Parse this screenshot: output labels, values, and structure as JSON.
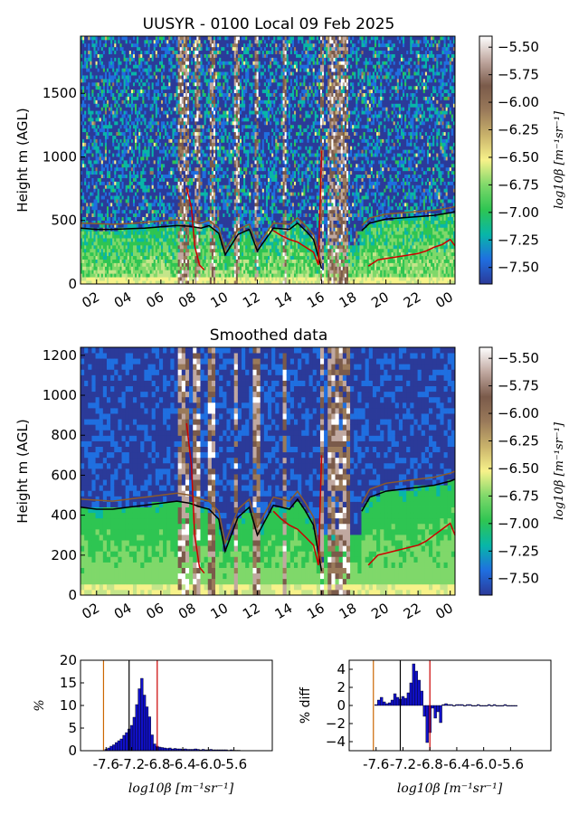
{
  "chart_data": [
    {
      "type": "heatmap",
      "title": "UUSYR - 0100 Local 09 Feb 2025",
      "ylabel": "Height m (AGL)",
      "x_ticks": [
        "02",
        "04",
        "06",
        "08",
        "10",
        "12",
        "14",
        "16",
        "18",
        "20",
        "22",
        "00"
      ],
      "x_range_hours": [
        1,
        24.3
      ],
      "y_ticks": [
        0,
        500,
        1000,
        1500
      ],
      "ylim": [
        0,
        1950
      ],
      "colorbar": {
        "label": "log10β [m⁻¹sr⁻¹]",
        "ticks": [
          "-5.50",
          "-5.75",
          "-6.00",
          "-6.25",
          "-6.50",
          "-6.75",
          "-7.00",
          "-7.25",
          "-7.50"
        ],
        "range": [
          -7.65,
          -5.4
        ]
      },
      "lines": [
        {
          "color": "#000000",
          "x": [
            1.0,
            2.0,
            3.0,
            4.0,
            5.0,
            6.0,
            7.0,
            7.8,
            8.5,
            9.0,
            9.6,
            10.0,
            10.8,
            11.5,
            12.0,
            13.0,
            14.0,
            14.5,
            15.0,
            15.5,
            16.0
          ],
          "y": [
            440,
            430,
            430,
            435,
            440,
            450,
            460,
            455,
            440,
            460,
            400,
            230,
            390,
            430,
            260,
            440,
            430,
            480,
            420,
            350,
            120
          ]
        },
        {
          "color": "#8b5a2b",
          "x": [
            1.0,
            2.0,
            3.0,
            4.0,
            5.0,
            6.0,
            7.0,
            7.8,
            8.5,
            9.0,
            9.6,
            10.0,
            10.8,
            11.5,
            12.0,
            13.0,
            14.0,
            14.5,
            15.0,
            15.5,
            16.0
          ],
          "y": [
            480,
            475,
            470,
            475,
            485,
            495,
            505,
            495,
            480,
            500,
            440,
            270,
            430,
            470,
            300,
            480,
            470,
            520,
            460,
            390,
            160
          ]
        },
        {
          "color": "#cc0000",
          "x": [
            7.6,
            7.9,
            8.1,
            8.4,
            8.7
          ],
          "y": [
            760,
            600,
            300,
            150,
            110
          ]
        },
        {
          "color": "#cc0000",
          "x": [
            13.0,
            13.5,
            14.0,
            14.5,
            15.0,
            15.5,
            15.8,
            16.0
          ],
          "y": [
            420,
            380,
            350,
            330,
            290,
            250,
            150,
            1050
          ]
        },
        {
          "color": "#cc0000",
          "x": [
            18.9,
            19.5,
            20.0,
            20.5,
            21.0,
            21.5,
            22.0,
            22.5,
            23.0,
            23.5,
            24.0,
            24.3
          ],
          "y": [
            140,
            190,
            200,
            210,
            220,
            230,
            240,
            260,
            290,
            310,
            350,
            300
          ]
        },
        {
          "color": "#000000",
          "x": [
            18.5,
            19.0,
            20.0,
            21.0,
            22.0,
            23.0,
            24.0,
            24.3
          ],
          "y": [
            420,
            480,
            510,
            520,
            530,
            540,
            560,
            570
          ]
        },
        {
          "color": "#8b5a2b",
          "x": [
            18.5,
            19.0,
            20.0,
            21.0,
            22.0,
            23.0,
            24.0,
            24.3
          ],
          "y": [
            460,
            520,
            550,
            560,
            570,
            580,
            600,
            610
          ]
        }
      ]
    },
    {
      "type": "heatmap",
      "title": "Smoothed data",
      "ylabel": "Height m (AGL)",
      "x_ticks": [
        "02",
        "04",
        "06",
        "08",
        "10",
        "12",
        "14",
        "16",
        "18",
        "20",
        "22",
        "00"
      ],
      "x_range_hours": [
        1,
        24.3
      ],
      "y_ticks": [
        0,
        200,
        400,
        600,
        800,
        1000,
        1200
      ],
      "ylim": [
        0,
        1240
      ],
      "colorbar": {
        "label": "log10β [m⁻¹sr⁻¹]",
        "ticks": [
          "-5.50",
          "-5.75",
          "-6.00",
          "-6.25",
          "-6.50",
          "-6.75",
          "-7.00",
          "-7.25",
          "-7.50"
        ],
        "range": [
          -7.65,
          -5.4
        ]
      },
      "lines": [
        {
          "color": "#000000",
          "x": [
            1.0,
            2.0,
            3.0,
            4.0,
            5.0,
            6.0,
            7.0,
            7.8,
            8.5,
            9.0,
            9.6,
            10.0,
            10.8,
            11.5,
            12.0,
            13.0,
            14.0,
            14.5,
            15.0,
            15.5,
            16.0
          ],
          "y": [
            440,
            430,
            430,
            440,
            450,
            460,
            470,
            460,
            440,
            430,
            380,
            220,
            390,
            440,
            300,
            450,
            430,
            480,
            420,
            350,
            120
          ]
        },
        {
          "color": "#8b5a2b",
          "x": [
            1.0,
            2.0,
            3.0,
            4.0,
            5.0,
            6.0,
            7.0,
            7.8,
            8.5,
            9.0,
            9.6,
            10.0,
            10.8,
            11.5,
            12.0,
            13.0,
            14.0,
            14.5,
            15.0,
            15.5,
            16.0
          ],
          "y": [
            480,
            475,
            470,
            480,
            490,
            500,
            510,
            500,
            480,
            470,
            420,
            260,
            430,
            480,
            340,
            490,
            470,
            520,
            460,
            390,
            160
          ]
        },
        {
          "color": "#cc0000",
          "x": [
            7.6,
            7.9,
            8.1,
            8.4,
            8.7
          ],
          "y": [
            860,
            650,
            300,
            140,
            110
          ]
        },
        {
          "color": "#cc0000",
          "x": [
            13.0,
            13.5,
            14.0,
            14.5,
            15.0,
            15.5,
            15.8,
            16.0
          ],
          "y": [
            420,
            380,
            350,
            330,
            290,
            250,
            150,
            700
          ]
        },
        {
          "color": "#cc0000",
          "x": [
            18.9,
            19.5,
            20.0,
            20.5,
            21.0,
            21.5,
            22.0,
            22.5,
            23.0,
            23.5,
            24.0,
            24.3
          ],
          "y": [
            150,
            200,
            210,
            220,
            230,
            240,
            250,
            270,
            300,
            330,
            360,
            300
          ]
        },
        {
          "color": "#000000",
          "x": [
            18.5,
            19.0,
            20.0,
            21.0,
            22.0,
            23.0,
            24.0,
            24.3
          ],
          "y": [
            420,
            490,
            520,
            530,
            540,
            550,
            570,
            580
          ]
        },
        {
          "color": "#8b5a2b",
          "x": [
            18.5,
            19.0,
            20.0,
            21.0,
            22.0,
            23.0,
            24.0,
            24.3
          ],
          "y": [
            460,
            530,
            560,
            570,
            580,
            590,
            610,
            620
          ]
        }
      ]
    },
    {
      "type": "bar",
      "ylabel": "%",
      "xlabel": "log10β [m⁻¹sr⁻¹]",
      "x_ticks": [
        -7.6,
        -7.2,
        -6.8,
        -6.4,
        -6.0,
        -5.6
      ],
      "xlim": [
        -8.0,
        -5.0
      ],
      "ylim": [
        0,
        20
      ],
      "y_ticks": [
        0,
        5,
        10,
        15,
        20
      ],
      "bin_width": 0.04,
      "x": [
        -7.6,
        -7.56,
        -7.52,
        -7.48,
        -7.44,
        -7.4,
        -7.36,
        -7.32,
        -7.28,
        -7.24,
        -7.2,
        -7.16,
        -7.12,
        -7.08,
        -7.04,
        -7.0,
        -6.96,
        -6.92,
        -6.88,
        -6.84,
        -6.8,
        -6.76,
        -6.72,
        -6.68,
        -6.64,
        -6.6,
        -6.56,
        -6.52,
        -6.48,
        -6.44,
        -6.4,
        -6.36,
        -6.32,
        -6.28,
        -6.24,
        -6.2,
        -6.16,
        -6.12,
        -6.08,
        -6.04,
        -6.0,
        -5.96,
        -5.92,
        -5.88,
        -5.84,
        -5.8,
        -5.76,
        -5.72,
        -5.68,
        -5.64,
        -5.6,
        -5.56,
        -5.52
      ],
      "values": [
        0.3,
        0.6,
        1.0,
        1.3,
        1.8,
        2.2,
        2.6,
        3.4,
        4.0,
        4.8,
        5.6,
        7.4,
        10.2,
        13.7,
        16.0,
        12.3,
        9.7,
        7.5,
        3.5,
        1.5,
        1.0,
        0.8,
        0.7,
        0.6,
        0.5,
        0.6,
        0.4,
        0.5,
        0.4,
        0.4,
        0.3,
        0.4,
        0.3,
        0.3,
        0.3,
        0.4,
        0.3,
        0.2,
        0.3,
        0.2,
        0.2,
        0.3,
        0.2,
        0.2,
        0.2,
        0.2,
        0.2,
        0.2,
        0.1,
        0.2,
        0.1,
        0.1,
        0.1
      ],
      "vlines": [
        {
          "x": -7.64,
          "color": "#cc6600"
        },
        {
          "x": -7.24,
          "color": "#000000"
        },
        {
          "x": -6.8,
          "color": "#cc0000"
        }
      ]
    },
    {
      "type": "bar",
      "ylabel": "% diff",
      "xlabel": "log10β [m⁻¹sr⁻¹]",
      "x_ticks": [
        -7.6,
        -7.2,
        -6.8,
        -6.4,
        -6.0,
        -5.6
      ],
      "xlim": [
        -8.0,
        -5.0
      ],
      "ylim": [
        -5,
        5
      ],
      "y_ticks": [
        -4,
        -2,
        0,
        2,
        4
      ],
      "bin_width": 0.04,
      "x": [
        -7.6,
        -7.56,
        -7.52,
        -7.48,
        -7.44,
        -7.4,
        -7.36,
        -7.32,
        -7.28,
        -7.24,
        -7.2,
        -7.16,
        -7.12,
        -7.08,
        -7.04,
        -7.0,
        -6.96,
        -6.92,
        -6.88,
        -6.84,
        -6.8,
        -6.76,
        -6.72,
        -6.68,
        -6.64,
        -6.6,
        -6.56,
        -6.52,
        -6.48,
        -6.44,
        -6.4,
        -6.36,
        -6.32,
        -6.28,
        -6.24,
        -6.2,
        -6.16,
        -6.12,
        -6.08,
        -6.04,
        -6.0,
        -5.96,
        -5.92,
        -5.88,
        -5.84,
        -5.8,
        -5.76,
        -5.72,
        -5.68,
        -5.64,
        -5.6,
        -5.56,
        -5.52
      ],
      "values": [
        0.1,
        0.6,
        0.9,
        0.4,
        0.2,
        0.3,
        0.6,
        1.3,
        0.9,
        0.7,
        1.0,
        0.8,
        1.4,
        2.5,
        4.6,
        3.8,
        2.8,
        1.6,
        -1.2,
        -4.1,
        -3.0,
        -0.3,
        -1.4,
        -0.7,
        -1.9,
        0.1,
        0.2,
        0.1,
        0.1,
        0.0,
        0.1,
        0.1,
        0.1,
        0.0,
        0.1,
        0.1,
        0.0,
        0.0,
        0.1,
        0.0,
        0.0,
        0.0,
        0.1,
        0.0,
        0.1,
        0.0,
        0.0,
        0.0,
        0.1,
        0.0,
        0.0,
        0.0,
        0.0
      ],
      "vlines": [
        {
          "x": -7.64,
          "color": "#cc6600"
        },
        {
          "x": -7.24,
          "color": "#000000"
        },
        {
          "x": -6.8,
          "color": "#cc0000"
        }
      ]
    }
  ]
}
